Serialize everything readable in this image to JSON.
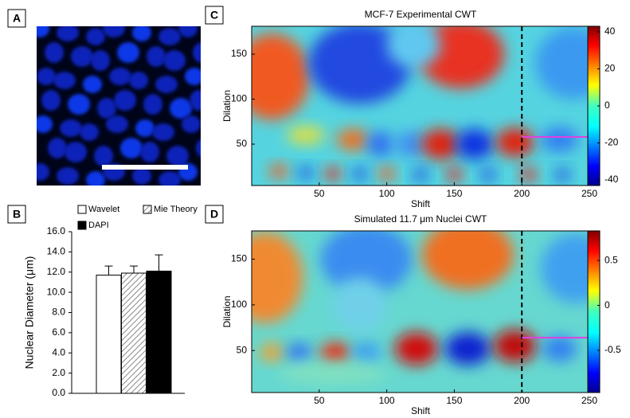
{
  "chart_data": [
    {
      "type": "image",
      "panel": "A"
    },
    {
      "type": "bar",
      "panel": "B",
      "ylabel": "Nuclear Diameter (μm)",
      "categories": [
        "Wavelet",
        "Mie Theory",
        "DAPI"
      ],
      "values": [
        11.7,
        11.9,
        12.1
      ],
      "errors": [
        0.9,
        0.7,
        1.6
      ],
      "colors": [
        "#ffffff",
        "#d8d8d8",
        "#000000"
      ],
      "hatch": [
        false,
        true,
        false
      ],
      "ylim": [
        0,
        16
      ],
      "yticks": [
        {
          "value": 0,
          "label": "0.0"
        },
        {
          "value": 2,
          "label": "2.0"
        },
        {
          "value": 4,
          "label": "4.0"
        },
        {
          "value": 6,
          "label": "6.0"
        },
        {
          "value": 8,
          "label": "8.0"
        },
        {
          "value": 10,
          "label": "10.0"
        },
        {
          "value": 12,
          "label": "12.0"
        },
        {
          "value": 14,
          "label": "14.0"
        },
        {
          "value": 16,
          "label": "16.0"
        }
      ]
    },
    {
      "type": "heatmap",
      "panel": "C",
      "title": "MCF-7 Experimental CWT",
      "xlabel": "Shift",
      "ylabel": "Dilation",
      "xlim": [
        0,
        250
      ],
      "ylim": [
        4,
        181
      ],
      "xticks": [
        50,
        100,
        150,
        200,
        250
      ],
      "yticks": [
        50,
        100,
        150
      ],
      "clim": [
        -43,
        43
      ],
      "cticks": [
        40,
        20,
        0,
        -20,
        -40
      ],
      "vlines": [
        200,
        250
      ],
      "segment": {
        "x": [
          200,
          250
        ],
        "y": [
          58,
          58
        ],
        "color": "#e040e0"
      }
    },
    {
      "type": "heatmap",
      "panel": "D",
      "title": "Simulated 11.7 μm Nuclei CWT",
      "xlabel": "Shift",
      "ylabel": "Dilation",
      "xlim": [
        0,
        250
      ],
      "ylim": [
        4,
        181
      ],
      "xticks": [
        50,
        100,
        150,
        200,
        250
      ],
      "yticks": [
        50,
        100,
        150
      ],
      "clim": [
        -0.97,
        0.83
      ],
      "cticks": [
        0.5,
        0,
        -0.5
      ],
      "vlines": [
        200,
        250
      ],
      "segment": {
        "x": [
          200,
          250
        ],
        "y": [
          64,
          64
        ],
        "color": "#e040e0"
      }
    }
  ]
}
